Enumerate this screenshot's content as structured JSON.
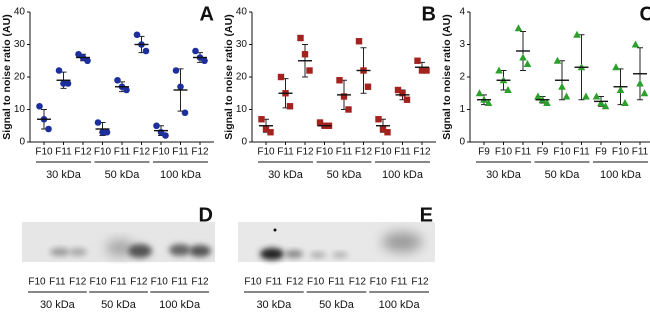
{
  "chart_data": [
    {
      "type": "scatter",
      "label": "A",
      "y_label": "Signal to noise ratio (AU)",
      "ylim": [
        0,
        40
      ],
      "yticks": [
        0,
        10,
        20,
        30,
        40
      ],
      "color": "#1c2f9c",
      "marker": "circle",
      "groups": [
        {
          "name": "30 kDa",
          "categories": [
            "F10",
            "F11",
            "F12"
          ],
          "points": [
            [
              11,
              7,
              4
            ],
            [
              22,
              18,
              18
            ],
            [
              27,
              26,
              25
            ]
          ],
          "mean": [
            7,
            19,
            26
          ],
          "sd": [
            3,
            2.5,
            1
          ]
        },
        {
          "name": "50 kDa",
          "categories": [
            "F10",
            "F11",
            "F12"
          ],
          "points": [
            [
              6,
              3,
              3
            ],
            [
              19,
              17,
              16
            ],
            [
              33,
              30,
              28
            ]
          ],
          "mean": [
            4,
            17,
            30
          ],
          "sd": [
            2,
            1.5,
            2.5
          ]
        },
        {
          "name": "100 kDa",
          "categories": [
            "F10",
            "F11",
            "F12"
          ],
          "points": [
            [
              5,
              3,
              2
            ],
            [
              22,
              17,
              9
            ],
            [
              28,
              26,
              25
            ]
          ],
          "mean": [
            3.5,
            16,
            26
          ],
          "sd": [
            1.5,
            6.5,
            1.5
          ]
        }
      ]
    },
    {
      "type": "scatter",
      "label": "B",
      "y_label": "Signal to noise ratio (AU)",
      "ylim": [
        0,
        40
      ],
      "yticks": [
        0,
        10,
        20,
        30,
        40
      ],
      "color": "#a3221e",
      "marker": "square",
      "groups": [
        {
          "name": "30 kDa",
          "categories": [
            "F10",
            "F11",
            "F12"
          ],
          "points": [
            [
              7,
              4,
              3
            ],
            [
              20,
              15,
              11
            ],
            [
              32,
              27,
              22
            ]
          ],
          "mean": [
            5,
            15,
            25
          ],
          "sd": [
            2,
            4.5,
            5
          ]
        },
        {
          "name": "50 kDa",
          "categories": [
            "F10",
            "F11",
            "F12"
          ],
          "points": [
            [
              6,
              5,
              5
            ],
            [
              19,
              14,
              10
            ],
            [
              31,
              22,
              17
            ]
          ],
          "mean": [
            5,
            14.5,
            22
          ],
          "sd": [
            0.5,
            4.5,
            7
          ]
        },
        {
          "name": "100 kDa",
          "categories": [
            "F10",
            "F11",
            "F12"
          ],
          "points": [
            [
              7,
              4,
              3
            ],
            [
              16,
              15,
              13
            ],
            [
              25,
              22,
              22
            ]
          ],
          "mean": [
            5,
            14.5,
            23
          ],
          "sd": [
            2,
            1.5,
            1.5
          ]
        }
      ]
    },
    {
      "type": "scatter",
      "label": "C",
      "y_label": "Signal to noise ratio (AU)",
      "ylim": [
        0,
        4
      ],
      "yticks": [
        0,
        1,
        2,
        3,
        4
      ],
      "color": "#2ca02c",
      "marker": "triangle",
      "groups": [
        {
          "name": "30 kDa",
          "categories": [
            "F9",
            "F10",
            "F11"
          ],
          "points": [
            [
              1.5,
              1.3,
              1.2
            ],
            [
              2.2,
              1.9,
              1.6
            ],
            [
              3.5,
              2.6,
              2.4
            ]
          ],
          "mean": [
            1.3,
            1.9,
            2.8
          ],
          "sd": [
            0.15,
            0.3,
            0.6
          ]
        },
        {
          "name": "50 kDa",
          "categories": [
            "F9",
            "F10",
            "F11"
          ],
          "points": [
            [
              1.4,
              1.3,
              1.2
            ],
            [
              2.5,
              1.7,
              1.4
            ],
            [
              3.3,
              2.3,
              1.4
            ]
          ],
          "mean": [
            1.3,
            1.9,
            2.3
          ],
          "sd": [
            0.1,
            0.6,
            1
          ]
        },
        {
          "name": "100 kDa",
          "categories": [
            "F9",
            "F10",
            "F11"
          ],
          "points": [
            [
              1.4,
              1.2,
              1.1
            ],
            [
              2.3,
              1.6,
              1.2
            ],
            [
              3,
              1.8,
              1.5
            ]
          ],
          "mean": [
            1.25,
            1.7,
            2.1
          ],
          "sd": [
            0.15,
            0.55,
            0.8
          ]
        }
      ]
    }
  ],
  "blots": [
    {
      "label": "D",
      "groups": [
        {
          "name": "30 kDa",
          "lanes": [
            "F10",
            "F11",
            "F12"
          ]
        },
        {
          "name": "50 kDa",
          "lanes": [
            "F10",
            "F11",
            "F12"
          ]
        },
        {
          "name": "100 kDa",
          "lanes": [
            "F10",
            "F11",
            "F12"
          ]
        }
      ]
    },
    {
      "label": "E",
      "groups": [
        {
          "name": "30 kDa",
          "lanes": [
            "F10",
            "F11",
            "F12"
          ]
        },
        {
          "name": "50 kDa",
          "lanes": [
            "F10",
            "F11",
            "F12"
          ]
        },
        {
          "name": "100 kDa",
          "lanes": [
            "F10",
            "F11",
            "F12"
          ]
        }
      ]
    }
  ]
}
